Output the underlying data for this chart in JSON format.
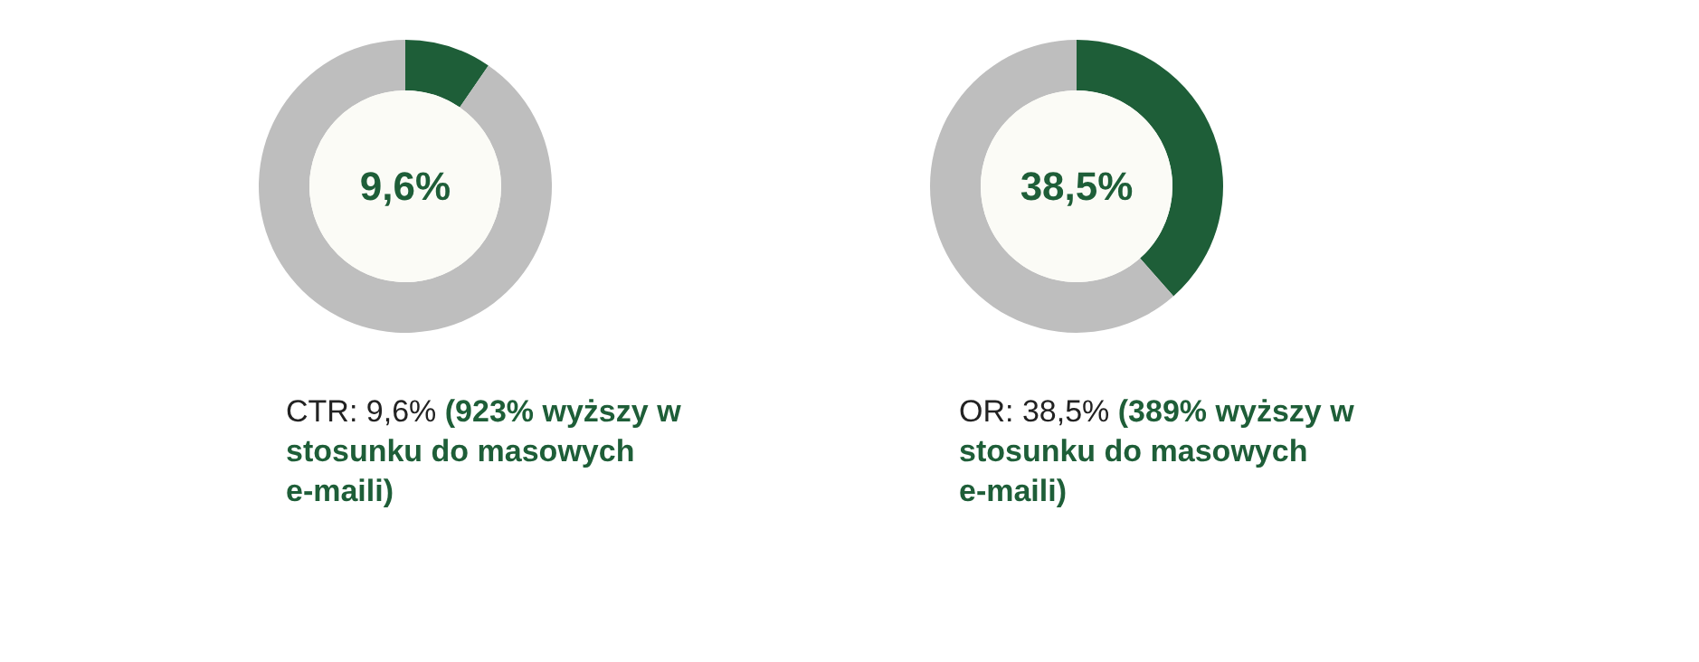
{
  "chart_data": [
    {
      "type": "donut",
      "categories": [
        null,
        null
      ],
      "values": [
        9.6,
        90.4
      ],
      "colors": [
        "#1e5e38",
        "#bebebe"
      ],
      "annotations": [
        "9,6%",
        "CTR: 9,6%",
        "(923% wyższy w stosunku do masowych e-maili)"
      ]
    },
    {
      "type": "donut",
      "categories": [
        null,
        null
      ],
      "values": [
        38.5,
        61.5
      ],
      "colors": [
        "#1e5e38",
        "#bebebe"
      ],
      "annotations": [
        "38,5%",
        "OR: 38,5%",
        "(389% wyższy w stosunku do masowych e-maili)"
      ]
    }
  ]
}
